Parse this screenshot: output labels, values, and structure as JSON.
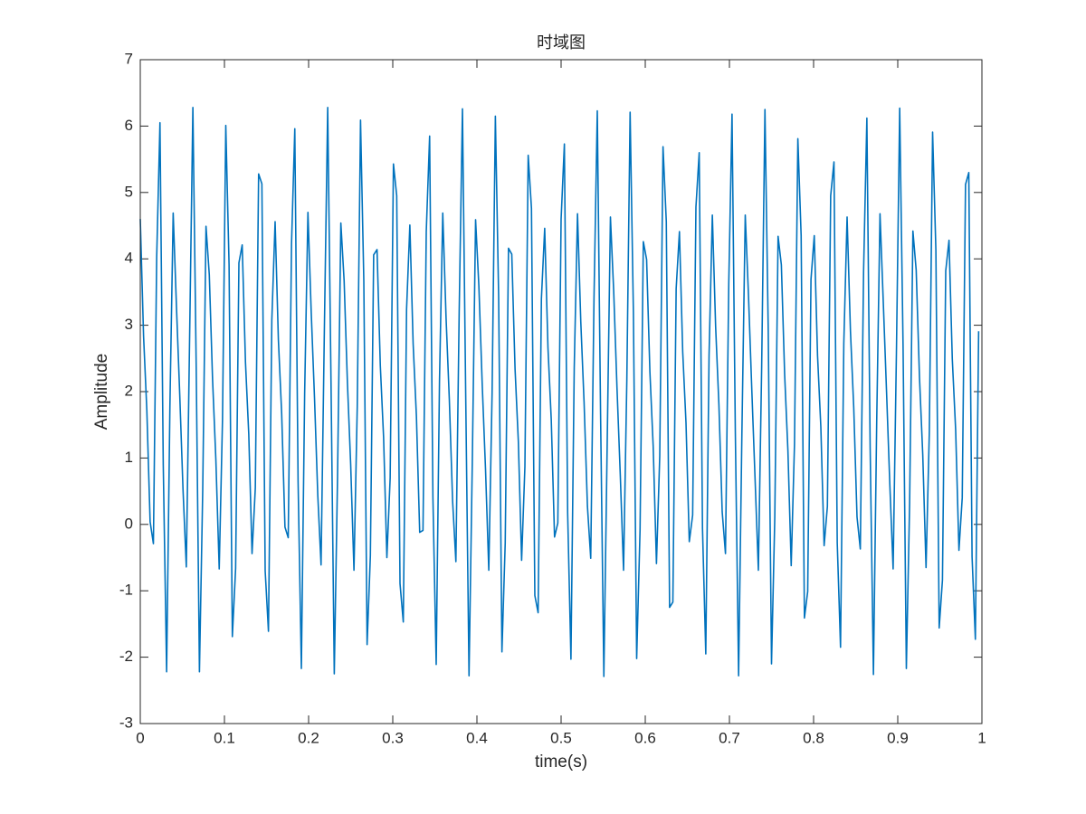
{
  "chart_data": {
    "type": "line",
    "title": "时域图",
    "xlabel": "time(s)",
    "ylabel": "Amplitude",
    "color": "#0072bd",
    "xlim": [
      0,
      1
    ],
    "ylim": [
      -3,
      7
    ],
    "xticks": [
      0,
      0.1,
      0.2,
      0.3,
      0.4,
      0.5,
      0.6,
      0.7,
      0.8,
      0.9,
      1
    ],
    "yticks": [
      -3,
      -2,
      -1,
      0,
      1,
      2,
      3,
      4,
      5,
      6,
      7
    ],
    "x": [
      0,
      0.0039,
      0.0078,
      0.0117,
      0.0156,
      0.0195,
      0.0234,
      0.0273,
      0.0313,
      0.0352,
      0.0391,
      0.043,
      0.0469,
      0.0508,
      0.0547,
      0.0586,
      0.0625,
      0.0664,
      0.0703,
      0.0742,
      0.0781,
      0.082,
      0.0859,
      0.0898,
      0.0938,
      0.0977,
      0.1016,
      0.1055,
      0.1094,
      0.1133,
      0.1172,
      0.1211,
      0.125,
      0.1289,
      0.1328,
      0.1367,
      0.1406,
      0.1445,
      0.1484,
      0.1523,
      0.1563,
      0.1602,
      0.1641,
      0.168,
      0.1719,
      0.1758,
      0.1797,
      0.1836,
      0.1875,
      0.1914,
      0.1953,
      0.1992,
      0.2031,
      0.207,
      0.2109,
      0.2148,
      0.2188,
      0.2227,
      0.2266,
      0.2305,
      0.2344,
      0.2383,
      0.2422,
      0.2461,
      0.25,
      0.2539,
      0.2578,
      0.2617,
      0.2656,
      0.2695,
      0.2734,
      0.2773,
      0.2813,
      0.2852,
      0.2891,
      0.293,
      0.2969,
      0.3008,
      0.3047,
      0.3086,
      0.3125,
      0.3164,
      0.3203,
      0.3242,
      0.3281,
      0.332,
      0.3359,
      0.3398,
      0.3438,
      0.3477,
      0.3516,
      0.3555,
      0.3594,
      0.3633,
      0.3672,
      0.3711,
      0.375,
      0.3789,
      0.3828,
      0.3867,
      0.3906,
      0.3945,
      0.3984,
      0.4023,
      0.4063,
      0.4102,
      0.4141,
      0.418,
      0.4219,
      0.4258,
      0.4297,
      0.4336,
      0.4375,
      0.4414,
      0.4453,
      0.4492,
      0.4531,
      0.457,
      0.4609,
      0.4648,
      0.4688,
      0.4727,
      0.4766,
      0.4805,
      0.4844,
      0.4883,
      0.4922,
      0.4961,
      0.5,
      0.5039,
      0.5078,
      0.5117,
      0.5156,
      0.5195,
      0.5234,
      0.5273,
      0.5313,
      0.5352,
      0.5391,
      0.543,
      0.5469,
      0.5508,
      0.5547,
      0.5586,
      0.5625,
      0.5664,
      0.5703,
      0.5742,
      0.5781,
      0.582,
      0.5859,
      0.5898,
      0.5938,
      0.5977,
      0.6016,
      0.6055,
      0.6094,
      0.6133,
      0.6172,
      0.6211,
      0.625,
      0.6289,
      0.6328,
      0.6367,
      0.6406,
      0.6445,
      0.6484,
      0.6523,
      0.6563,
      0.6602,
      0.6641,
      0.668,
      0.6719,
      0.6758,
      0.6797,
      0.6836,
      0.6875,
      0.6914,
      0.6953,
      0.6992,
      0.7031,
      0.707,
      0.7109,
      0.7148,
      0.7188,
      0.7227,
      0.7266,
      0.7305,
      0.7344,
      0.7383,
      0.7422,
      0.7461,
      0.75,
      0.7539,
      0.7578,
      0.7617,
      0.7656,
      0.7695,
      0.7734,
      0.7773,
      0.7813,
      0.7852,
      0.7891,
      0.793,
      0.7969,
      0.8008,
      0.8047,
      0.8086,
      0.8125,
      0.8164,
      0.8203,
      0.8242,
      0.8281,
      0.832,
      0.8359,
      0.8398,
      0.8438,
      0.8477,
      0.8516,
      0.8555,
      0.8594,
      0.8633,
      0.8672,
      0.8711,
      0.875,
      0.8789,
      0.8828,
      0.8867,
      0.8906,
      0.8945,
      0.8984,
      0.9023,
      0.9063,
      0.9102,
      0.9141,
      0.918,
      0.9219,
      0.9258,
      0.9297,
      0.9336,
      0.9375,
      0.9414,
      0.9453,
      0.9492,
      0.9531,
      0.957,
      0.9609,
      0.9648,
      0.9688,
      0.9727,
      0.9766,
      0.9805,
      0.9844,
      0.9883,
      0.9922,
      0.9961
    ],
    "values": [
      4.6,
      2.84,
      1.72,
      0.04,
      -0.29,
      4.02,
      6.05,
      0.9,
      -2.22,
      1.77,
      4.69,
      3.28,
      1.95,
      0.52,
      -0.64,
      2.79,
      6.28,
      2.43,
      -2.22,
      0.52,
      4.49,
      3.76,
      2.18,
      0.98,
      -0.67,
      1.58,
      6.01,
      3.91,
      -1.69,
      -0.66,
      3.94,
      4.21,
      2.44,
      1.36,
      -0.44,
      0.55,
      5.28,
      5.13,
      -0.7,
      -1.61,
      3.08,
      4.56,
      2.78,
      1.67,
      -0.04,
      -0.2,
      4.22,
      5.96,
      0.65,
      -2.17,
      1.97,
      4.7,
      3.2,
      1.91,
      0.44,
      -0.61,
      2.99,
      6.28,
      2.17,
      -2.25,
      0.73,
      4.54,
      3.67,
      2.14,
      0.9,
      -0.69,
      1.77,
      6.09,
      3.67,
      -1.81,
      -0.47,
      4.06,
      4.14,
      2.39,
      1.31,
      -0.5,
      0.7,
      5.43,
      4.95,
      -0.89,
      -1.47,
      3.24,
      4.51,
      2.72,
      1.63,
      -0.12,
      -0.09,
      4.41,
      5.85,
      0.41,
      -2.11,
      2.16,
      4.69,
      3.12,
      1.88,
      0.35,
      -0.56,
      3.2,
      6.26,
      1.91,
      -2.28,
      0.94,
      4.59,
      3.59,
      2.1,
      0.83,
      -0.69,
      1.97,
      6.15,
      3.43,
      -1.92,
      -0.28,
      4.16,
      4.07,
      2.34,
      1.25,
      -0.54,
      0.87,
      5.56,
      4.76,
      -1.07,
      -1.33,
      3.4,
      4.46,
      2.66,
      1.58,
      -0.19,
      0.02,
      4.6,
      5.73,
      0.17,
      -2.03,
      2.36,
      4.68,
      3.05,
      1.84,
      0.27,
      -0.51,
      3.41,
      6.23,
      1.66,
      -2.29,
      1.15,
      4.63,
      3.51,
      2.06,
      0.75,
      -0.69,
      2.17,
      6.21,
      3.19,
      -2.02,
      -0.09,
      4.26,
      3.99,
      2.3,
      1.18,
      -0.59,
      1.03,
      5.69,
      4.56,
      -1.25,
      -1.17,
      3.55,
      4.41,
      2.6,
      1.53,
      -0.26,
      0.14,
      4.78,
      5.6,
      -0.06,
      -1.95,
      2.55,
      4.66,
      2.98,
      1.8,
      0.19,
      -0.44,
      3.62,
      6.18,
      1.4,
      -2.28,
      1.35,
      4.66,
      3.43,
      2.02,
      0.67,
      -0.69,
      2.37,
      6.25,
      2.94,
      -2.1,
      0.11,
      4.34,
      3.91,
      2.26,
      1.11,
      -0.62,
      1.21,
      5.81,
      4.35,
      -1.41,
      -1.01,
      3.69,
      4.35,
      2.54,
      1.47,
      -0.32,
      0.27,
      4.95,
      5.46,
      -0.28,
      -1.85,
      2.73,
      4.63,
      2.91,
      1.76,
      0.11,
      -0.37,
      3.82,
      6.12,
      1.15,
      -2.26,
      1.56,
      4.68,
      3.35,
      1.99,
      0.59,
      -0.67,
      2.58,
      6.27,
      2.69,
      -2.17,
      0.32,
      4.42,
      3.83,
      2.22,
      1.05,
      -0.65,
      1.39,
      5.91,
      4.13,
      -1.56,
      -0.84,
      3.82,
      4.28,
      2.49,
      1.42,
      -0.39,
      0.4,
      5.12,
      5.3,
      -0.49,
      -1.73,
      2.91
    ]
  }
}
